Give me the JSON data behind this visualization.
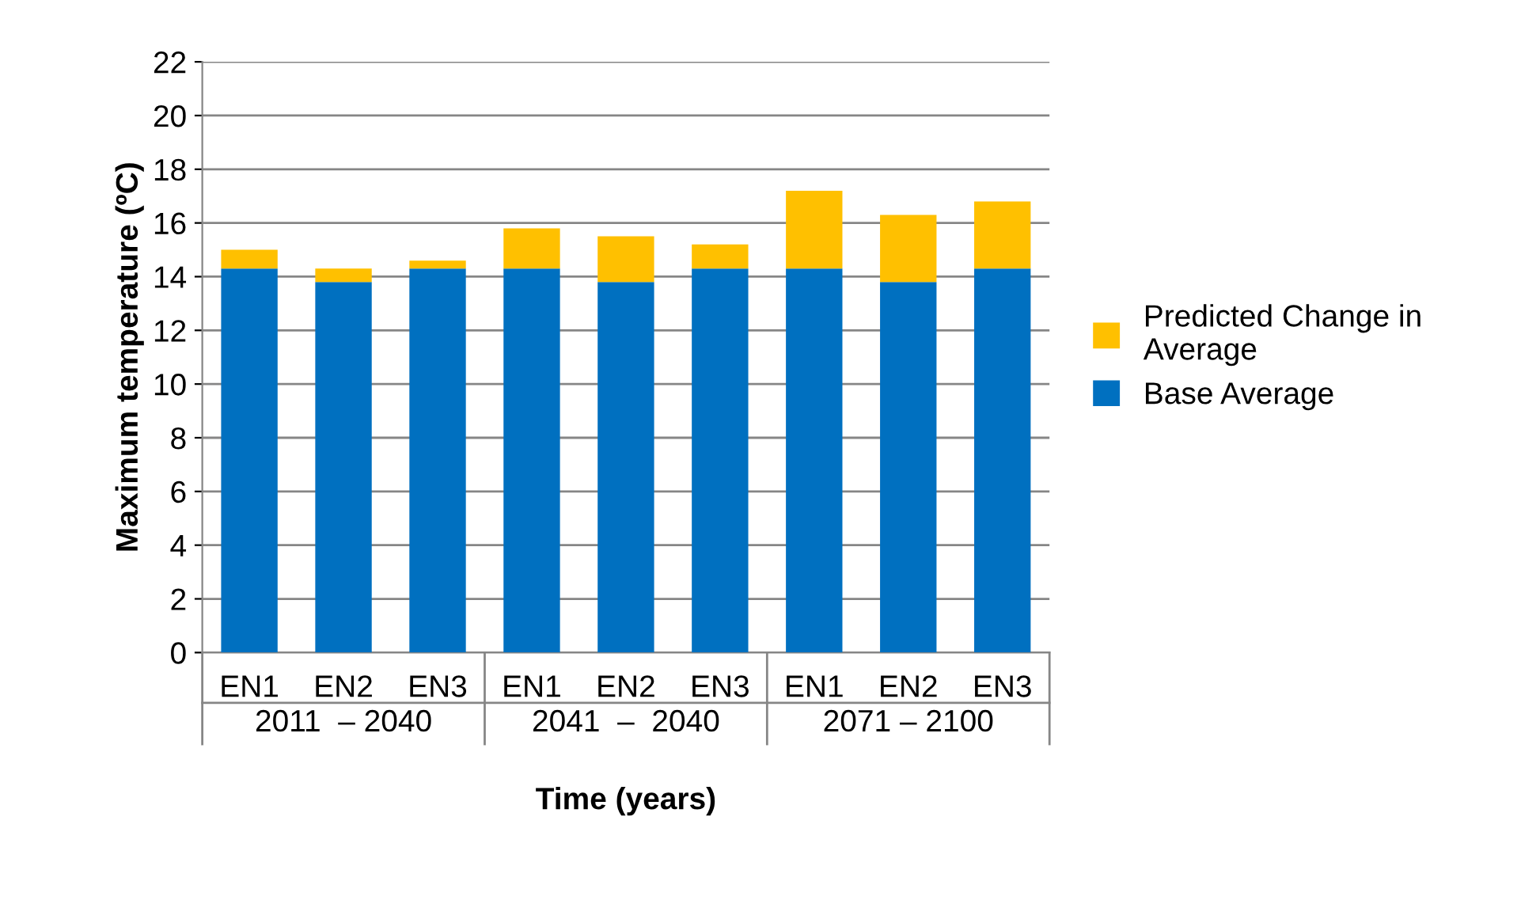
{
  "chart_data": {
    "type": "bar",
    "stacked": true,
    "xlabel": "Time (years)",
    "ylabel": "Maximum temperature (ºC)",
    "categories": [
      "EN1",
      "EN2",
      "EN3",
      "EN1",
      "EN2",
      "EN3",
      "EN1",
      "EN2",
      "EN3"
    ],
    "series": [
      {
        "name": "Base Average",
        "color": "#0070c0",
        "values": [
          14.3,
          13.8,
          14.3,
          14.3,
          13.8,
          14.3,
          14.3,
          13.8,
          14.3
        ]
      },
      {
        "name": "Predicted Change in Average",
        "color": "#ffc000",
        "values": [
          0.7,
          0.5,
          0.3,
          1.5,
          1.7,
          0.9,
          2.9,
          2.5,
          2.5
        ]
      }
    ],
    "annotations": [
      "2011  – 2040",
      "2041  –  2040",
      "2071 – 2100"
    ],
    "ylim": [
      0,
      22
    ],
    "yticks": [
      0,
      2,
      4,
      6,
      8,
      10,
      12,
      14,
      16,
      18,
      20,
      22
    ],
    "grid": "y",
    "legend": "right"
  }
}
